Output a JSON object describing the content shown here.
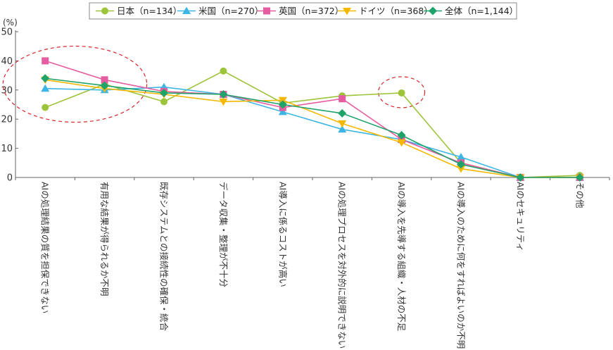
{
  "chart_data": {
    "type": "line",
    "ylabel": "(%)",
    "ylim": [
      0,
      50
    ],
    "yticks": [
      0,
      10,
      20,
      30,
      40,
      50
    ],
    "grid": false,
    "legend_position": "top",
    "categories": [
      "AIの処理結果の質を担保できない",
      "有用な結果が得られるか不明",
      "既存システムとの接続性の確保・統合",
      "データ収集・整理が不十分",
      "AI導入に係るコストが高い",
      "AIの処理プロセスを対外的に説明できない",
      "AIの導入を先導する組織・人材の不足",
      "AIの導入のために何をすればよいのか不明",
      "AIのセキュリティ",
      "その他"
    ],
    "series": [
      {
        "name": "日本（n=134）",
        "color": "#9dc43a",
        "marker": "circle",
        "values": [
          24,
          32,
          26,
          36.5,
          25.5,
          28,
          29,
          5,
          0,
          0.7
        ]
      },
      {
        "name": "米国（n=270）",
        "color": "#3db6e6",
        "marker": "triangle",
        "values": [
          30.5,
          30,
          31,
          28.5,
          22.5,
          16.5,
          13,
          7,
          0,
          0
        ]
      },
      {
        "name": "英国（n=372）",
        "color": "#e55da0",
        "marker": "square",
        "values": [
          40,
          33.5,
          29.5,
          28.5,
          24,
          27,
          13,
          5,
          0,
          0
        ]
      },
      {
        "name": "ドイツ（n=368）",
        "color": "#f5b800",
        "marker": "triangle-down",
        "values": [
          33.5,
          30.5,
          28.5,
          26,
          26.5,
          18.5,
          12,
          3,
          0,
          0
        ]
      },
      {
        "name": "全体（n=1,144）",
        "color": "#1fa36a",
        "marker": "diamond",
        "values": [
          34,
          31.5,
          29,
          28.5,
          25,
          22,
          14.5,
          4.5,
          0,
          0
        ]
      }
    ],
    "annotations": [
      {
        "type": "dashed-ellipse",
        "color": "#d9262b",
        "around_categories": [
          0,
          1
        ]
      },
      {
        "type": "dashed-ellipse",
        "color": "#d9262b",
        "around_categories": [
          6
        ]
      }
    ]
  }
}
